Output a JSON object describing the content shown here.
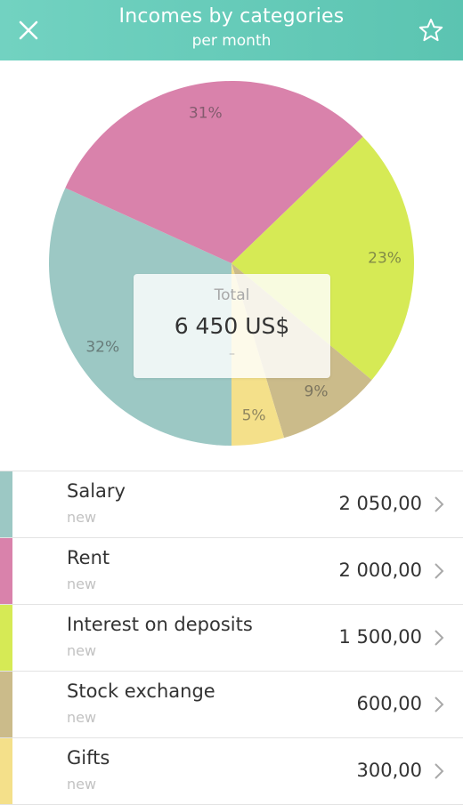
{
  "header": {
    "title": "Incomes by categories",
    "subtitle": "per month",
    "background_color": "#5bc4b1",
    "close_icon": "close-icon",
    "favorite_icon": "star-icon"
  },
  "summary": {
    "label": "Total",
    "value": "6 450 US$",
    "dash": "–"
  },
  "chart_data": {
    "type": "pie",
    "categories": [
      "Salary",
      "Rent",
      "Interest on deposits",
      "Stock exchange",
      "Gifts"
    ],
    "values": [
      2050,
      2000,
      1500,
      600,
      300
    ],
    "percent_labels": [
      "32%",
      "31%",
      "23%",
      "9%",
      "5%"
    ],
    "colors": [
      "#9cc8c4",
      "#d982ab",
      "#d6ea55",
      "#cbbb8a",
      "#f4e08a"
    ]
  },
  "categories": [
    {
      "name": "Salary",
      "sub": "new",
      "amount": "2 050,00",
      "color": "#9cc8c4"
    },
    {
      "name": "Rent",
      "sub": "new",
      "amount": "2 000,00",
      "color": "#d982ab"
    },
    {
      "name": "Interest on deposits",
      "sub": "new",
      "amount": "1 500,00",
      "color": "#d6ea55"
    },
    {
      "name": "Stock exchange",
      "sub": "new",
      "amount": "600,00",
      "color": "#cbbb8a"
    },
    {
      "name": "Gifts",
      "sub": "new",
      "amount": "300,00",
      "color": "#f4e08a"
    }
  ]
}
